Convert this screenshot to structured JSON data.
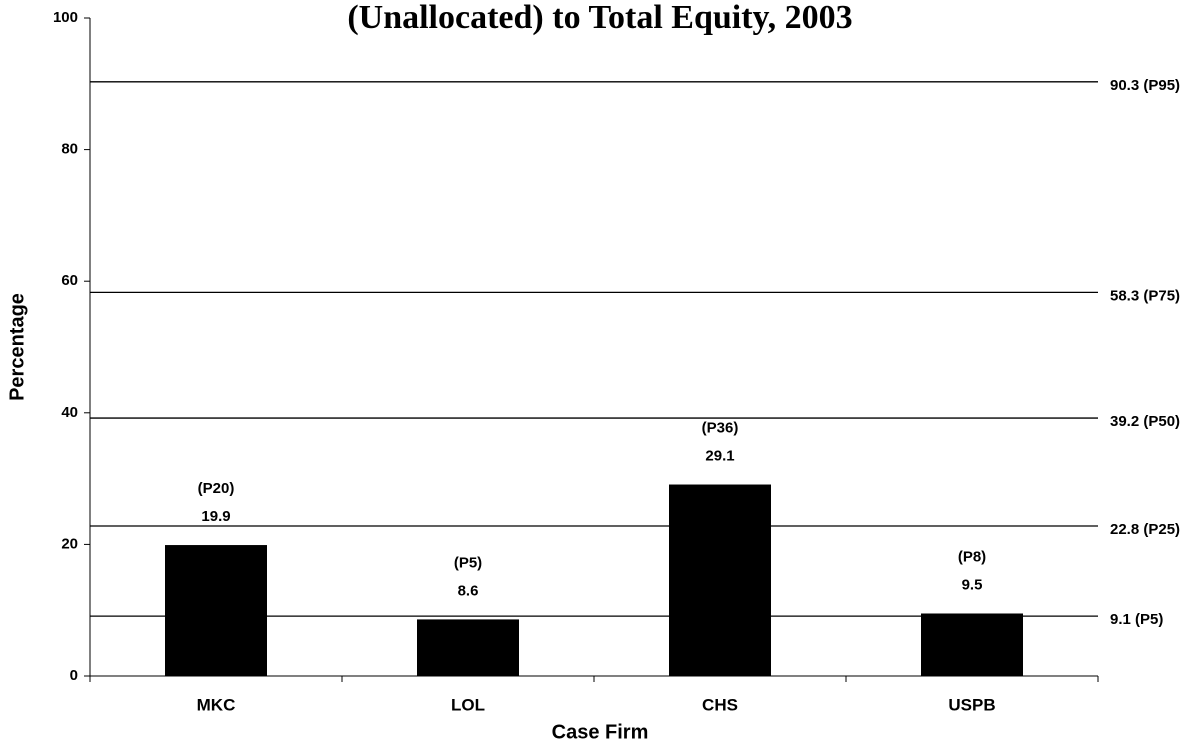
{
  "chart_data": {
    "type": "bar",
    "title": "(Unallocated) to Total Equity, 2003",
    "x_label": "Case Firm",
    "y_label": "Percentage",
    "categories": [
      "MKC",
      "LOL",
      "CHS",
      "USPB"
    ],
    "values": [
      19.9,
      8.6,
      29.1,
      9.5
    ],
    "percentiles": [
      "(P20)",
      "(P5)",
      "(P36)",
      "(P8)"
    ],
    "color": "#000000",
    "ylim": [
      0,
      100
    ],
    "yticks": [
      0,
      20,
      40,
      60,
      80,
      100
    ],
    "reference_lines": [
      {
        "value": 90.3,
        "label": "90.3 (P95)"
      },
      {
        "value": 58.3,
        "label": "58.3 (P75)"
      },
      {
        "value": 39.2,
        "label": "39.2 (P50)"
      },
      {
        "value": 22.8,
        "label": "22.8 (P25)"
      },
      {
        "value": 9.1,
        "label": "9.1 (P5)"
      }
    ]
  }
}
